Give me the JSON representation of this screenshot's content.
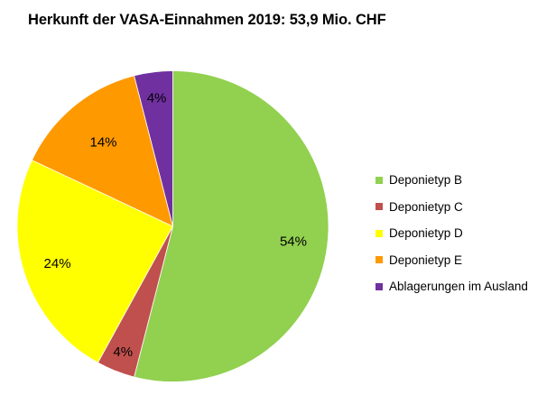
{
  "chart_data": {
    "type": "pie",
    "title": "Herkunft der VASA-Einnahmen 2019: 53,9 Mio. CHF",
    "slices": [
      {
        "label": "Deponietyp B",
        "value": 54,
        "display": "54%",
        "color": "#92d050"
      },
      {
        "label": "Deponietyp C",
        "value": 4,
        "display": "4%",
        "color": "#c0504d"
      },
      {
        "label": "Deponietyp D",
        "value": 24,
        "display": "24%",
        "color": "#ffff00"
      },
      {
        "label": "Deponietyp E",
        "value": 14,
        "display": "14%",
        "color": "#ff9900"
      },
      {
        "label": "Ablagerungen im Ausland",
        "value": 4,
        "display": "4%",
        "color": "#7030a0"
      }
    ],
    "start_angle": "12 o'clock",
    "direction": "clockwise",
    "legend_position": "right"
  }
}
